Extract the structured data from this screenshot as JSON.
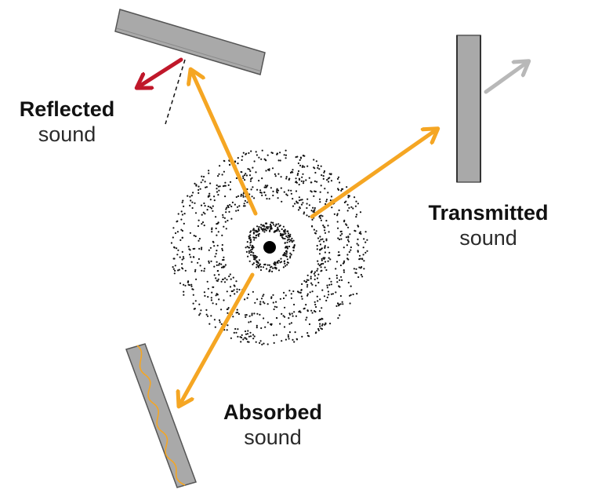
{
  "labels": {
    "reflected": {
      "strong": "Reflected",
      "light": "sound"
    },
    "transmitted": {
      "strong": "Transmitted",
      "light": "sound"
    },
    "absorbed": {
      "strong": "Absorbed",
      "light": "sound"
    }
  },
  "colors": {
    "ray": "#f5a623",
    "reflected_ray": "#c0182a",
    "transmitted_ray": "#b8b8b8",
    "panel_fill": "#a9a9a9",
    "panel_edge": "#555555",
    "dots": "#111111",
    "wave": "#f5a623"
  },
  "icons": {
    "source": "sound-source-dot",
    "wave_field": "sound-wave-dots"
  }
}
